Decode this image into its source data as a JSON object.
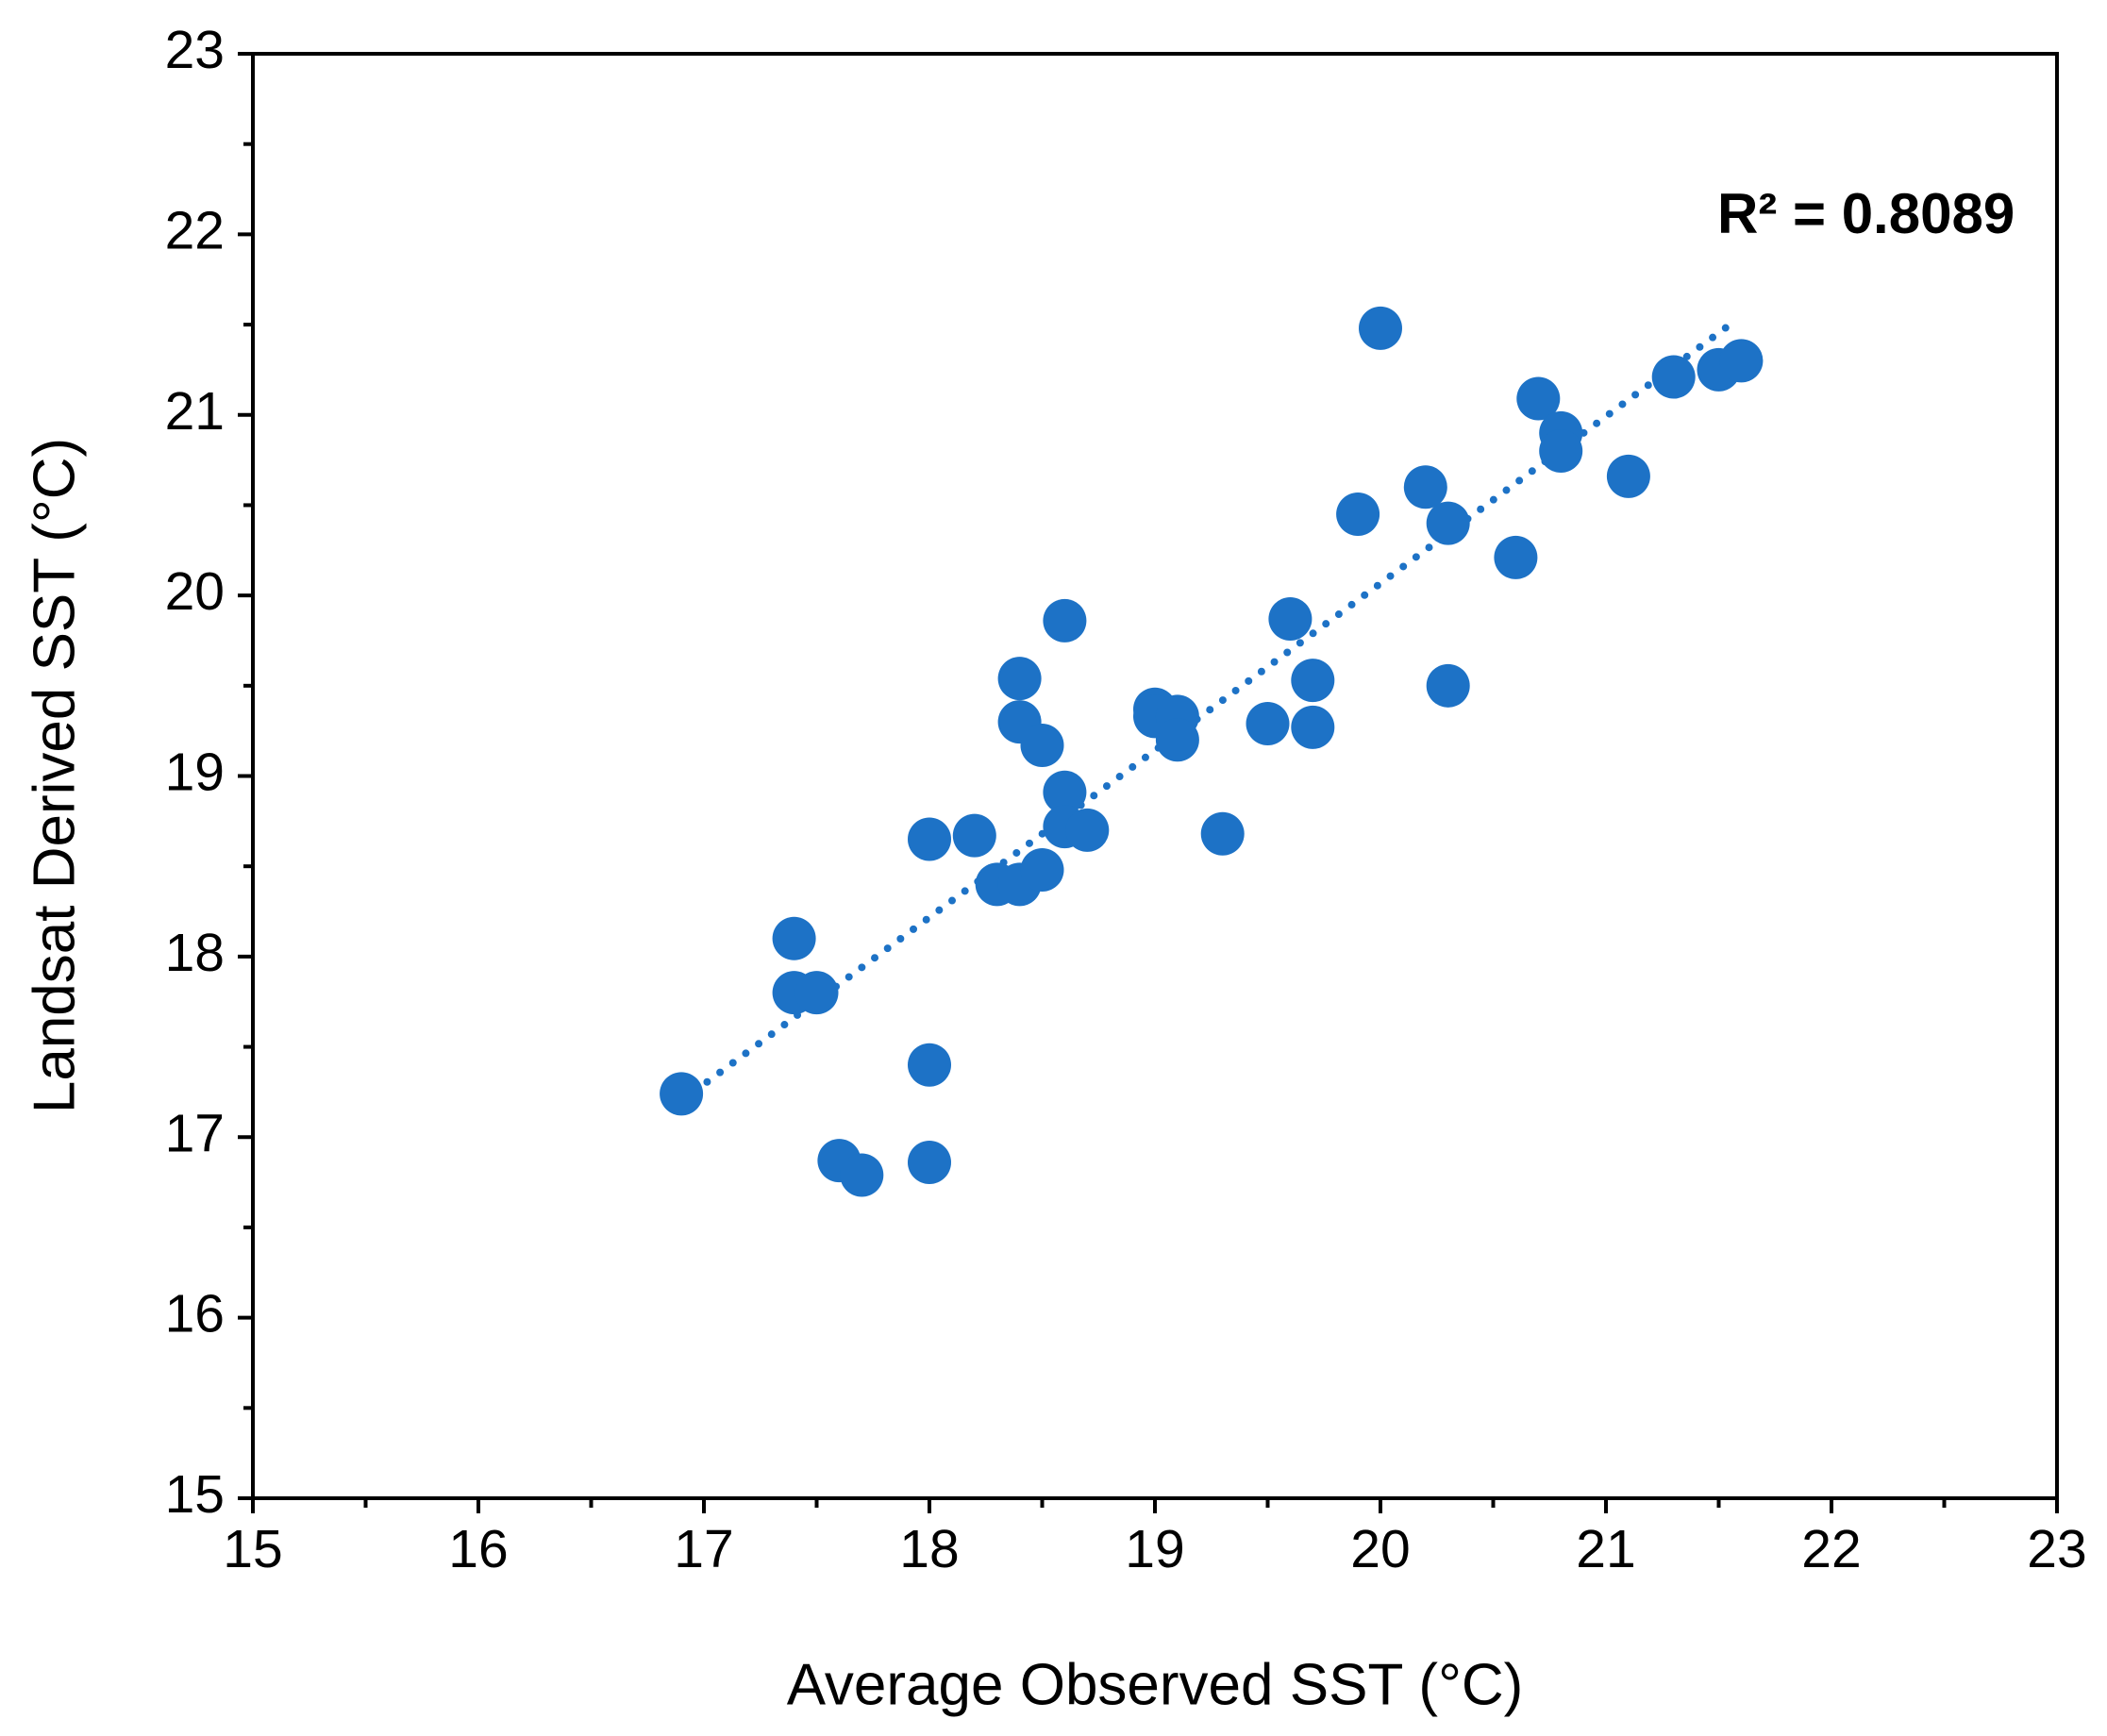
{
  "chart_data": {
    "type": "scatter",
    "xlabel": "Average Observed SST (°C)",
    "ylabel": "Landsat Derived SST (°C)",
    "annotation": "R² = 0.8089",
    "color": "#1d72c6",
    "xlim": [
      15,
      23
    ],
    "ylim": [
      15,
      23
    ],
    "xticks": [
      15,
      16,
      17,
      18,
      19,
      20,
      21,
      22,
      23
    ],
    "yticks": [
      15,
      16,
      17,
      18,
      19,
      20,
      21,
      22,
      23
    ],
    "xminorticks": [
      15.5,
      16.5,
      17.5,
      18.5,
      19.5,
      20.5,
      21.5,
      22.5
    ],
    "yminorticks": [
      15.5,
      16.5,
      17.5,
      18.5,
      19.5,
      20.5,
      21.5,
      22.5
    ],
    "grid": false,
    "x": [
      16.9,
      17.4,
      17.4,
      17.5,
      17.6,
      17.7,
      18.0,
      18.0,
      18.0,
      18.2,
      18.3,
      18.4,
      18.5,
      18.4,
      18.4,
      18.5,
      18.6,
      18.6,
      18.6,
      18.7,
      19.0,
      19.0,
      19.1,
      19.1,
      19.3,
      19.5,
      19.6,
      19.7,
      19.7,
      19.9,
      20.0,
      20.2,
      20.3,
      20.3,
      20.6,
      20.7,
      20.8,
      20.8,
      21.1,
      21.3,
      21.5,
      21.6
    ],
    "values": [
      17.24,
      18.1,
      17.8,
      17.8,
      16.87,
      16.79,
      17.4,
      16.86,
      18.65,
      18.67,
      18.4,
      18.4,
      18.48,
      19.54,
      19.3,
      19.17,
      19.86,
      18.91,
      18.72,
      18.7,
      19.37,
      19.33,
      19.33,
      19.2,
      18.68,
      19.29,
      19.87,
      19.53,
      19.27,
      20.45,
      21.48,
      20.6,
      20.4,
      19.5,
      20.21,
      21.09,
      20.9,
      20.8,
      20.66,
      21.21,
      21.25,
      21.3
    ],
    "trendline": {
      "x": [
        16.9,
        21.55
      ],
      "values": [
        17.2,
        21.5
      ]
    }
  }
}
